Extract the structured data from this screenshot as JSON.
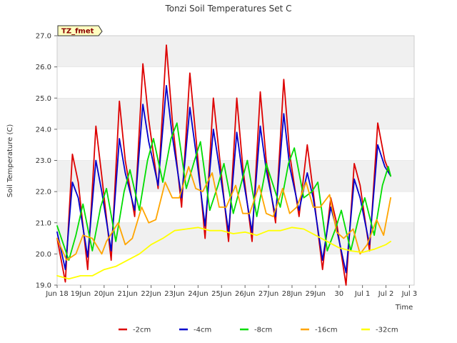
{
  "chart_data": {
    "type": "line",
    "title": "Tonzi Soil Temperatures Set C",
    "xlabel": "Time",
    "ylabel": "Soil Temperature (C)",
    "badge": "TZ_fmet",
    "ylim": [
      19.0,
      27.0
    ],
    "xlim": [
      0,
      16
    ],
    "x_unit": "days since Jun 18 00:00",
    "y_ticks": [
      "19.0",
      "20.0",
      "21.0",
      "22.0",
      "23.0",
      "24.0",
      "25.0",
      "26.0",
      "27.0"
    ],
    "x_ticks": [
      {
        "x": 0,
        "label": "Jun 18"
      },
      {
        "x": 1,
        "label": "19Jun"
      },
      {
        "x": 2,
        "label": "20Jun"
      },
      {
        "x": 3,
        "label": "21Jun"
      },
      {
        "x": 4,
        "label": "22Jun"
      },
      {
        "x": 5,
        "label": "23Jun"
      },
      {
        "x": 6,
        "label": "24Jun"
      },
      {
        "x": 7,
        "label": "25Jun"
      },
      {
        "x": 8,
        "label": "26Jun"
      },
      {
        "x": 9,
        "label": "27Jun"
      },
      {
        "x": 10,
        "label": "28Jun"
      },
      {
        "x": 11,
        "label": "29Jun"
      },
      {
        "x": 12,
        "label": "30"
      },
      {
        "x": 13,
        "label": "Jul 1"
      },
      {
        "x": 14,
        "label": "Jul 2"
      },
      {
        "x": 15,
        "label": "Jul 3"
      }
    ],
    "grid": true,
    "legend_position": "bottom",
    "series": [
      {
        "name": "-2cm",
        "color": "#dd0000",
        "x": [
          0.0,
          0.35,
          0.65,
          0.9,
          1.3,
          1.65,
          1.9,
          2.3,
          2.65,
          2.9,
          3.3,
          3.65,
          3.9,
          4.3,
          4.65,
          4.9,
          5.3,
          5.65,
          5.9,
          6.3,
          6.65,
          6.9,
          7.3,
          7.65,
          7.9,
          8.3,
          8.65,
          8.9,
          9.3,
          9.65,
          9.9,
          10.3,
          10.65,
          10.9,
          11.3,
          11.65,
          11.9,
          12.3,
          12.65,
          12.9,
          13.3,
          13.65,
          13.95,
          14.2
        ],
        "values": [
          20.5,
          19.1,
          23.2,
          22.3,
          19.5,
          24.1,
          22.5,
          19.8,
          24.9,
          23.0,
          21.2,
          26.1,
          24.3,
          22.1,
          26.7,
          24.3,
          21.5,
          25.8,
          23.8,
          20.5,
          25.0,
          23.2,
          20.4,
          25.0,
          22.8,
          20.4,
          25.2,
          23.0,
          21.0,
          25.6,
          23.2,
          21.2,
          23.5,
          22.0,
          19.5,
          21.8,
          21.0,
          19.0,
          22.9,
          22.2,
          20.1,
          24.2,
          23.0,
          22.5
        ]
      },
      {
        "name": "-4cm",
        "color": "#0000cc",
        "x": [
          0.0,
          0.35,
          0.65,
          0.9,
          1.3,
          1.65,
          1.9,
          2.3,
          2.65,
          2.9,
          3.3,
          3.65,
          3.9,
          4.3,
          4.65,
          4.9,
          5.3,
          5.65,
          5.9,
          6.3,
          6.65,
          6.9,
          7.3,
          7.65,
          7.9,
          8.3,
          8.65,
          8.9,
          9.3,
          9.65,
          9.9,
          10.3,
          10.65,
          10.9,
          11.3,
          11.65,
          11.9,
          12.3,
          12.65,
          12.9,
          13.3,
          13.65,
          13.95,
          14.2
        ],
        "values": [
          20.7,
          19.5,
          22.3,
          21.8,
          19.9,
          23.0,
          22.0,
          20.1,
          23.7,
          22.6,
          21.4,
          24.8,
          23.6,
          22.2,
          25.4,
          23.8,
          21.8,
          24.7,
          23.3,
          20.9,
          24.0,
          22.8,
          20.7,
          23.9,
          22.5,
          20.7,
          24.1,
          22.7,
          21.2,
          24.5,
          22.8,
          21.4,
          22.6,
          21.8,
          19.8,
          21.5,
          20.8,
          19.4,
          22.4,
          21.8,
          20.3,
          23.5,
          22.8,
          22.5
        ]
      },
      {
        "name": "-8cm",
        "color": "#00dd00",
        "x": [
          0.0,
          0.5,
          0.8,
          1.1,
          1.5,
          1.85,
          2.1,
          2.5,
          2.85,
          3.1,
          3.5,
          3.85,
          4.1,
          4.5,
          4.85,
          5.1,
          5.5,
          5.85,
          6.1,
          6.5,
          6.85,
          7.1,
          7.5,
          7.85,
          8.1,
          8.5,
          8.85,
          8.9,
          9.5,
          9.85,
          10.1,
          10.5,
          10.85,
          11.1,
          11.5,
          11.85,
          12.1,
          12.5,
          12.85,
          13.1,
          13.5,
          13.85,
          14.1,
          14.2
        ],
        "values": [
          20.9,
          19.8,
          20.6,
          21.6,
          20.1,
          21.5,
          22.1,
          20.4,
          22.0,
          22.7,
          21.4,
          23.0,
          23.7,
          22.3,
          23.7,
          24.2,
          22.1,
          23.0,
          23.6,
          21.4,
          22.2,
          22.9,
          21.3,
          22.3,
          23.0,
          21.2,
          22.6,
          22.9,
          21.5,
          22.9,
          23.4,
          21.8,
          22.0,
          22.3,
          20.1,
          20.8,
          21.4,
          20.1,
          21.2,
          21.8,
          20.6,
          22.2,
          22.8,
          22.5
        ]
      },
      {
        "name": "-16cm",
        "color": "#ffa500",
        "x": [
          0.0,
          0.4,
          0.8,
          1.1,
          1.5,
          1.9,
          2.1,
          2.6,
          2.9,
          3.2,
          3.6,
          3.9,
          4.2,
          4.6,
          4.9,
          5.2,
          5.6,
          5.9,
          6.2,
          6.6,
          6.9,
          7.2,
          7.6,
          7.9,
          8.2,
          8.6,
          8.9,
          9.2,
          9.6,
          9.9,
          10.2,
          10.6,
          10.9,
          11.2,
          11.6,
          11.9,
          12.2,
          12.6,
          12.9,
          13.2,
          13.6,
          13.9,
          14.1,
          14.2
        ],
        "values": [
          20.5,
          19.8,
          20.0,
          20.6,
          20.5,
          20.0,
          20.4,
          21.0,
          20.3,
          20.5,
          21.5,
          21.0,
          21.1,
          22.3,
          21.8,
          21.8,
          22.8,
          22.1,
          22.0,
          22.6,
          21.5,
          21.5,
          22.2,
          21.3,
          21.3,
          22.2,
          21.3,
          21.2,
          22.1,
          21.3,
          21.5,
          22.3,
          21.5,
          21.5,
          21.9,
          20.7,
          20.5,
          20.8,
          20.0,
          20.3,
          21.1,
          20.6,
          21.4,
          21.8
        ]
      },
      {
        "name": "-32cm",
        "color": "#ffff00",
        "x": [
          0.0,
          0.5,
          1.0,
          1.5,
          2.0,
          2.5,
          3.0,
          3.5,
          4.0,
          4.5,
          5.0,
          5.5,
          6.0,
          6.5,
          7.0,
          7.5,
          8.0,
          8.5,
          9.0,
          9.5,
          10.0,
          10.5,
          11.0,
          11.5,
          12.0,
          12.5,
          13.0,
          13.5,
          14.0,
          14.2
        ],
        "values": [
          19.3,
          19.2,
          19.3,
          19.3,
          19.5,
          19.6,
          19.8,
          20.0,
          20.3,
          20.5,
          20.75,
          20.8,
          20.85,
          20.75,
          20.75,
          20.65,
          20.7,
          20.6,
          20.75,
          20.75,
          20.85,
          20.8,
          20.6,
          20.4,
          20.2,
          20.1,
          20.05,
          20.15,
          20.3,
          20.4
        ]
      }
    ]
  }
}
